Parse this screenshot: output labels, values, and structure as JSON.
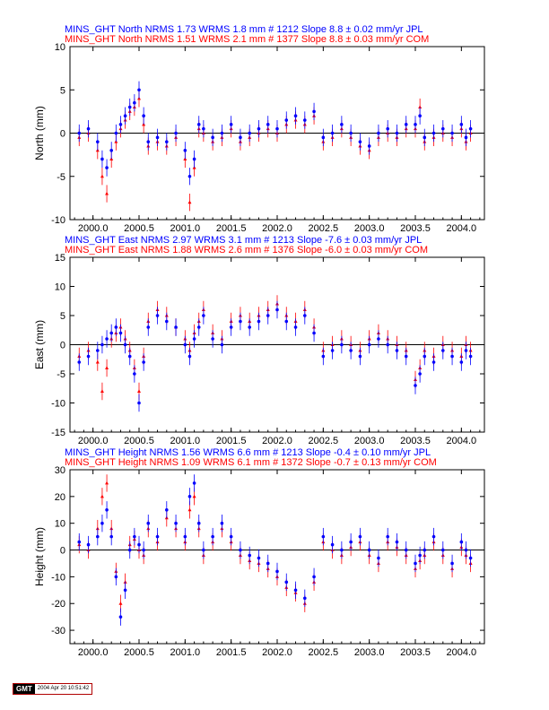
{
  "colors": {
    "jpl": "#0000ff",
    "com": "#ff0000",
    "axis": "#000000"
  },
  "footer": {
    "logo": "GMT",
    "stamp": "2004 Apr 20 10:51:42"
  },
  "chart_data": [
    {
      "type": "scatter",
      "component": "North",
      "ylabel": "North (mm)",
      "header": [
        "MINS_GHT North NRMS 1.73 WRMS  1.8 mm # 1212 Slope    8.8 ±  0.02 mm/yr JPL",
        "MINS_GHT North NRMS 1.51 WRMS  2.1 mm # 1377 Slope    8.8 ±  0.03 mm/yr COM"
      ],
      "xlim": [
        1999.75,
        2004.25
      ],
      "ylim": [
        -10,
        10
      ],
      "xticks": [
        "2000.0",
        "2000.5",
        "2001.0",
        "2001.5",
        "2002.0",
        "2002.5",
        "2003.0",
        "2003.5",
        "2004.0"
      ],
      "yticks": [
        -10,
        -5,
        0,
        5,
        10
      ],
      "series": [
        {
          "name": "JPL",
          "x": [
            1999.85,
            1999.95,
            2000.05,
            2000.1,
            2000.15,
            2000.2,
            2000.25,
            2000.3,
            2000.35,
            2000.4,
            2000.45,
            2000.5,
            2000.55,
            2000.6,
            2000.7,
            2000.8,
            2000.9,
            2001.0,
            2001.05,
            2001.1,
            2001.15,
            2001.2,
            2001.3,
            2001.4,
            2001.5,
            2001.6,
            2001.7,
            2001.8,
            2001.9,
            2002.0,
            2002.1,
            2002.2,
            2002.3,
            2002.4,
            2002.5,
            2002.6,
            2002.7,
            2002.8,
            2002.9,
            2003.0,
            2003.1,
            2003.2,
            2003.3,
            2003.4,
            2003.5,
            2003.55,
            2003.6,
            2003.7,
            2003.8,
            2003.9,
            2004.0,
            2004.05,
            2004.1
          ],
          "y": [
            0,
            0.5,
            -1,
            -3,
            -4,
            -2,
            0,
            1,
            2,
            3,
            3.5,
            5,
            2,
            -1,
            -0.5,
            -1,
            0,
            -2,
            -5,
            -3,
            1,
            0.5,
            -0.5,
            0,
            1,
            -0.5,
            0,
            0.5,
            1,
            0.5,
            1.5,
            2,
            1.5,
            2.5,
            -0.5,
            0,
            1,
            0,
            -1,
            -1.5,
            0,
            0.5,
            0,
            1,
            1,
            2,
            -0.5,
            0,
            0.5,
            0,
            1,
            -0.5,
            0.5
          ]
        },
        {
          "name": "COM",
          "x": [
            1999.85,
            1999.95,
            2000.05,
            2000.1,
            2000.15,
            2000.2,
            2000.25,
            2000.3,
            2000.35,
            2000.4,
            2000.45,
            2000.5,
            2000.55,
            2000.6,
            2000.7,
            2000.8,
            2000.9,
            2001.0,
            2001.05,
            2001.1,
            2001.15,
            2001.2,
            2001.3,
            2001.4,
            2001.5,
            2001.6,
            2001.7,
            2001.8,
            2001.9,
            2002.0,
            2002.1,
            2002.2,
            2002.3,
            2002.4,
            2002.5,
            2002.6,
            2002.7,
            2002.8,
            2002.9,
            2003.0,
            2003.1,
            2003.2,
            2003.3,
            2003.4,
            2003.5,
            2003.55,
            2003.6,
            2003.7,
            2003.8,
            2003.9,
            2004.0,
            2004.05,
            2004.1
          ],
          "y": [
            -0.5,
            0,
            -2,
            -5,
            -7,
            -3,
            -1,
            0.5,
            1.5,
            2.5,
            3,
            4,
            1,
            -1.5,
            -1,
            -1.5,
            -0.5,
            -3,
            -8,
            -4,
            0.5,
            0,
            -1,
            -0.5,
            0.5,
            -1,
            -0.5,
            0,
            0.5,
            0,
            1,
            1.5,
            1,
            2,
            -1,
            -0.5,
            0.5,
            -0.5,
            -1.5,
            -2,
            -0.5,
            0,
            -0.5,
            0.5,
            0.5,
            3,
            -1,
            -0.5,
            0,
            -0.5,
            0.5,
            -1,
            0
          ]
        }
      ]
    },
    {
      "type": "scatter",
      "component": "East",
      "ylabel": "East (mm)",
      "header": [
        "MINS_GHT East NRMS 2.97 WRMS  3.1 mm # 1213 Slope   -7.6 ±  0.03 mm/yr JPL",
        "MINS_GHT East NRMS 1.88 WRMS  2.6 mm # 1376 Slope   -6.0 ±  0.03 mm/yr COM"
      ],
      "xlim": [
        1999.75,
        2004.25
      ],
      "ylim": [
        -15,
        15
      ],
      "xticks": [
        "2000.0",
        "2000.5",
        "2001.0",
        "2001.5",
        "2002.0",
        "2002.5",
        "2003.0",
        "2003.5",
        "2004.0"
      ],
      "yticks": [
        -15,
        -10,
        -5,
        0,
        5,
        10,
        15
      ],
      "series": [
        {
          "name": "JPL",
          "x": [
            1999.85,
            1999.95,
            2000.05,
            2000.1,
            2000.15,
            2000.2,
            2000.25,
            2000.3,
            2000.35,
            2000.4,
            2000.45,
            2000.5,
            2000.55,
            2000.6,
            2000.7,
            2000.8,
            2000.9,
            2001.0,
            2001.05,
            2001.1,
            2001.15,
            2001.2,
            2001.3,
            2001.4,
            2001.5,
            2001.6,
            2001.7,
            2001.8,
            2001.9,
            2002.0,
            2002.1,
            2002.2,
            2002.3,
            2002.4,
            2002.5,
            2002.6,
            2002.7,
            2002.8,
            2002.9,
            2003.0,
            2003.1,
            2003.2,
            2003.3,
            2003.4,
            2003.5,
            2003.55,
            2003.6,
            2003.7,
            2003.8,
            2003.9,
            2004.0,
            2004.05,
            2004.1
          ],
          "y": [
            -3,
            -2,
            -1,
            0,
            1,
            2,
            3,
            2,
            0,
            -2,
            -5,
            -10,
            -3,
            3,
            5,
            4,
            3,
            0,
            -2,
            1,
            3,
            5,
            1,
            0,
            3,
            4,
            3,
            4,
            5,
            6,
            4,
            3,
            5,
            2,
            -2,
            -1,
            0,
            -1,
            -2,
            0,
            1,
            0,
            -1,
            -2,
            -7,
            -5,
            -2,
            -3,
            -1,
            -2,
            -3,
            -1,
            -2
          ]
        },
        {
          "name": "COM",
          "x": [
            1999.85,
            1999.95,
            2000.05,
            2000.1,
            2000.15,
            2000.2,
            2000.25,
            2000.3,
            2000.35,
            2000.4,
            2000.45,
            2000.5,
            2000.55,
            2000.6,
            2000.7,
            2000.8,
            2000.9,
            2001.0,
            2001.05,
            2001.1,
            2001.15,
            2001.2,
            2001.3,
            2001.4,
            2001.5,
            2001.6,
            2001.7,
            2001.8,
            2001.9,
            2002.0,
            2002.1,
            2002.2,
            2002.3,
            2002.4,
            2002.5,
            2002.6,
            2002.7,
            2002.8,
            2002.9,
            2003.0,
            2003.1,
            2003.2,
            2003.3,
            2003.4,
            2003.5,
            2003.55,
            2003.6,
            2003.7,
            2003.8,
            2003.9,
            2004.0,
            2004.05,
            2004.1
          ],
          "y": [
            -2,
            -1,
            -3,
            -8,
            -4,
            1,
            2,
            3,
            1,
            -1,
            -4,
            -8,
            -2,
            4,
            6,
            5,
            3,
            1,
            -1,
            2,
            4,
            6,
            2,
            1,
            4,
            5,
            4,
            5,
            6,
            7,
            5,
            4,
            6,
            3,
            -1,
            0,
            1,
            0,
            -1,
            1,
            2,
            1,
            0,
            -1,
            -6,
            -4,
            -1,
            -2,
            0,
            -1,
            -2,
            0,
            -1
          ]
        }
      ]
    },
    {
      "type": "scatter",
      "component": "Height",
      "ylabel": "Height (mm)",
      "header": [
        "MINS_GHT Height NRMS 1.56 WRMS  6.6 mm # 1213 Slope   -0.4 ±  0.10 mm/yr JPL",
        "MINS_GHT Height NRMS 1.09 WRMS  6.1 mm # 1372 Slope   -0.7 ±  0.13 mm/yr COM"
      ],
      "xlim": [
        1999.75,
        2004.25
      ],
      "ylim": [
        -35,
        30
      ],
      "xticks": [
        "2000.0",
        "2000.5",
        "2001.0",
        "2001.5",
        "2002.0",
        "2002.5",
        "2003.0",
        "2003.5",
        "2004.0"
      ],
      "yticks": [
        -30,
        -20,
        -10,
        0,
        10,
        20,
        30
      ],
      "series": [
        {
          "name": "JPL",
          "x": [
            1999.85,
            1999.95,
            2000.05,
            2000.1,
            2000.15,
            2000.2,
            2000.25,
            2000.3,
            2000.35,
            2000.4,
            2000.45,
            2000.5,
            2000.55,
            2000.6,
            2000.7,
            2000.8,
            2000.9,
            2001.0,
            2001.05,
            2001.1,
            2001.15,
            2001.2,
            2001.3,
            2001.4,
            2001.5,
            2001.6,
            2001.7,
            2001.8,
            2001.9,
            2002.0,
            2002.1,
            2002.2,
            2002.3,
            2002.4,
            2002.5,
            2002.6,
            2002.7,
            2002.8,
            2002.9,
            2003.0,
            2003.1,
            2003.2,
            2003.3,
            2003.4,
            2003.5,
            2003.55,
            2003.6,
            2003.7,
            2003.8,
            2003.9,
            2004.0,
            2004.05,
            2004.1
          ],
          "y": [
            3,
            2,
            5,
            10,
            15,
            5,
            -10,
            -25,
            -15,
            0,
            5,
            2,
            0,
            10,
            5,
            15,
            10,
            5,
            20,
            25,
            10,
            0,
            5,
            10,
            5,
            0,
            -2,
            -3,
            -5,
            -8,
            -12,
            -15,
            -18,
            -10,
            5,
            2,
            0,
            3,
            5,
            0,
            -3,
            5,
            3,
            0,
            -5,
            -2,
            0,
            5,
            0,
            -5,
            3,
            0,
            -3
          ]
        },
        {
          "name": "COM",
          "x": [
            1999.85,
            1999.95,
            2000.05,
            2000.1,
            2000.15,
            2000.2,
            2000.25,
            2000.3,
            2000.35,
            2000.4,
            2000.45,
            2000.5,
            2000.55,
            2000.6,
            2000.7,
            2000.8,
            2000.9,
            2001.0,
            2001.05,
            2001.1,
            2001.15,
            2001.2,
            2001.3,
            2001.4,
            2001.5,
            2001.6,
            2001.7,
            2001.8,
            2001.9,
            2002.0,
            2002.1,
            2002.2,
            2002.3,
            2002.4,
            2002.5,
            2002.6,
            2002.7,
            2002.8,
            2002.9,
            2003.0,
            2003.1,
            2003.2,
            2003.3,
            2003.4,
            2003.5,
            2003.55,
            2003.6,
            2003.7,
            2003.8,
            2003.9,
            2004.0,
            2004.05,
            2004.1
          ],
          "y": [
            2,
            0,
            8,
            20,
            25,
            8,
            -8,
            -20,
            -12,
            2,
            4,
            0,
            -2,
            8,
            3,
            12,
            8,
            3,
            15,
            20,
            8,
            -2,
            3,
            8,
            3,
            -2,
            -4,
            -5,
            -7,
            -10,
            -14,
            -16,
            -20,
            -12,
            3,
            0,
            -2,
            1,
            3,
            -2,
            -5,
            3,
            1,
            -2,
            -7,
            -4,
            -2,
            3,
            -2,
            -7,
            1,
            -2,
            -5
          ]
        }
      ]
    }
  ]
}
